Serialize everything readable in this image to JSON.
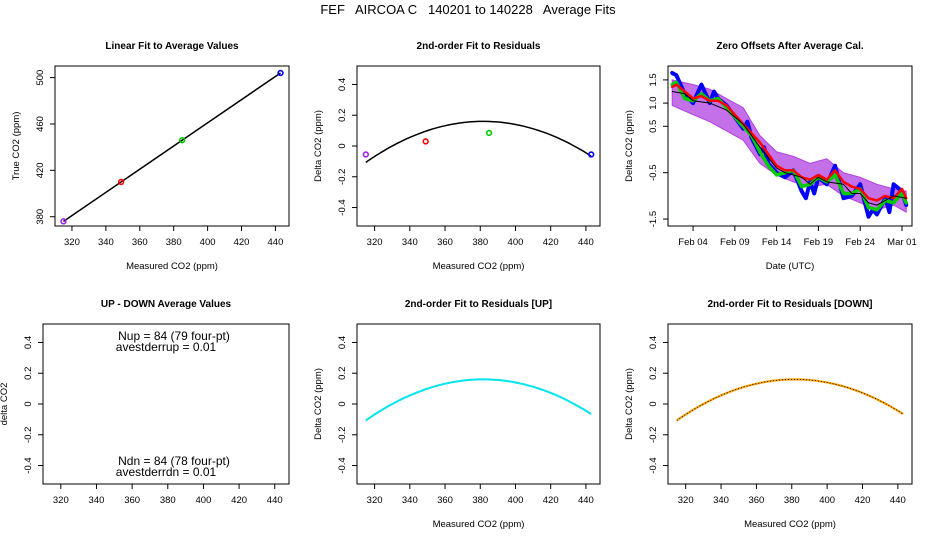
{
  "title": "FEF   AIRCOA C   140201 to 140228   Average Fits",
  "chart_data": [
    {
      "id": "p1",
      "type": "scatter",
      "title": "Linear Fit to Average Values",
      "xlabel": "Measured CO2 (ppm)",
      "ylabel": "True CO2 (ppm)",
      "xlim": [
        310,
        448
      ],
      "ylim": [
        372,
        510
      ],
      "xticks": [
        320,
        340,
        360,
        380,
        400,
        420,
        440
      ],
      "yticks": [
        380,
        420,
        460,
        500
      ],
      "fit_line": {
        "x": [
          315,
          443
        ],
        "y": [
          376,
          504
        ],
        "color": "#000000"
      },
      "points": [
        {
          "x": 315,
          "y": 376,
          "color": "#a020f0"
        },
        {
          "x": 349,
          "y": 410,
          "color": "#ff0000"
        },
        {
          "x": 385,
          "y": 446,
          "color": "#00cc00"
        },
        {
          "x": 443,
          "y": 504,
          "color": "#0000ff"
        }
      ]
    },
    {
      "id": "p2",
      "type": "scatter",
      "title": "2nd-order Fit to Residuals",
      "xlabel": "Measured CO2 (ppm)",
      "ylabel": "Delta CO2 (ppm)",
      "xlim": [
        310,
        448
      ],
      "ylim": [
        -0.52,
        0.52
      ],
      "xticks": [
        320,
        340,
        360,
        380,
        400,
        420,
        440
      ],
      "yticks": [
        -0.4,
        -0.2,
        0.0,
        0.2,
        0.4
      ],
      "curve": {
        "x_from": 315,
        "x_to": 443,
        "coef": [
          -8.58,
          0.0458,
          -6e-05
        ],
        "color": "#000000",
        "width": 1.5
      },
      "points": [
        {
          "x": 315,
          "y": -0.055,
          "color": "#a020f0"
        },
        {
          "x": 349,
          "y": 0.03,
          "color": "#ff0000"
        },
        {
          "x": 385,
          "y": 0.085,
          "color": "#00cc00"
        },
        {
          "x": 443,
          "y": -0.055,
          "color": "#0000ff"
        }
      ]
    },
    {
      "id": "p3",
      "type": "line",
      "title": "Zero Offsets After Average Cal.",
      "xlabel": "Date (UTC)",
      "ylabel": "Delta CO2 (ppm)",
      "xlim": [
        0,
        29.2
      ],
      "ylim": [
        -1.65,
        1.8
      ],
      "xticks": [
        3,
        8,
        13,
        18,
        23,
        28
      ],
      "xticklabels": [
        "Feb 04",
        "Feb 09",
        "Feb 14",
        "Feb 19",
        "Feb 24",
        "Mar 01"
      ],
      "yticks": [
        -1.5,
        -0.5,
        0.5,
        1.0,
        1.5
      ],
      "yticklabels": [
        "-1.5",
        "-0.5",
        "0.5",
        "1.0",
        "1.5"
      ],
      "band": {
        "color": "#b040e0",
        "x": [
          0.5,
          3,
          5,
          7,
          9,
          11,
          13,
          15,
          17,
          19,
          21,
          23,
          25,
          27,
          28.5
        ],
        "lo": [
          0.95,
          0.75,
          0.6,
          0.4,
          0.2,
          -0.3,
          -0.55,
          -0.7,
          -0.8,
          -0.75,
          -1.0,
          -1.15,
          -1.3,
          -1.2,
          -1.35
        ],
        "hi": [
          1.5,
          1.4,
          1.3,
          1.1,
          0.9,
          0.3,
          -0.05,
          -0.15,
          -0.3,
          -0.2,
          -0.5,
          -0.6,
          -0.75,
          -0.85,
          -0.9
        ]
      },
      "series": [
        {
          "color": "#0000ff",
          "width": 4,
          "x": [
            0.5,
            1,
            2,
            3,
            4,
            5,
            5.5,
            6,
            7,
            8,
            9,
            9.5,
            10,
            11,
            11.5,
            12,
            13,
            14,
            15,
            16,
            16.5,
            17,
            17.5,
            18,
            19,
            20,
            21,
            22,
            23,
            24,
            24.5,
            25,
            26,
            26.5,
            27,
            28,
            28.5
          ],
          "y": [
            1.65,
            1.6,
            1.2,
            1.0,
            1.4,
            1.0,
            1.25,
            1.1,
            0.95,
            0.7,
            0.45,
            0.6,
            0.25,
            -0.1,
            0.05,
            -0.3,
            -0.5,
            -0.6,
            -0.45,
            -0.9,
            -1.05,
            -0.7,
            -0.95,
            -0.6,
            -0.75,
            -0.35,
            -1.05,
            -1.0,
            -0.75,
            -1.45,
            -1.3,
            -1.4,
            -1.05,
            -1.35,
            -0.75,
            -0.9,
            -1.2
          ]
        },
        {
          "color": "#00cc00",
          "width": 3.5,
          "x": [
            0.5,
            1,
            2,
            3,
            4,
            5,
            6,
            7,
            8,
            9,
            10,
            11,
            12,
            13,
            14,
            15,
            16,
            17,
            18,
            19,
            20,
            21,
            22,
            23,
            24,
            25,
            26,
            27,
            28,
            28.5
          ],
          "y": [
            1.4,
            1.45,
            1.1,
            1.05,
            1.2,
            1.05,
            1.1,
            0.9,
            0.7,
            0.5,
            0.3,
            -0.05,
            -0.35,
            -0.55,
            -0.5,
            -0.45,
            -0.8,
            -0.75,
            -0.6,
            -0.7,
            -0.55,
            -0.95,
            -0.95,
            -0.85,
            -1.25,
            -1.3,
            -1.1,
            -1.15,
            -0.95,
            -1.15
          ]
        },
        {
          "color": "#ff0000",
          "width": 2.5,
          "x": [
            0.5,
            1,
            2,
            3,
            4,
            5,
            6,
            7,
            8,
            9,
            10,
            11,
            12,
            13,
            14,
            15,
            16,
            17,
            18,
            19,
            20,
            21,
            22,
            23,
            24,
            25,
            26,
            27,
            28,
            28.5
          ],
          "y": [
            1.35,
            1.4,
            1.25,
            1.1,
            1.15,
            1.05,
            1.05,
            0.95,
            0.75,
            0.55,
            0.35,
            0.15,
            -0.1,
            -0.35,
            -0.45,
            -0.45,
            -0.6,
            -0.65,
            -0.55,
            -0.65,
            -0.45,
            -0.7,
            -0.8,
            -0.85,
            -1.05,
            -1.1,
            -1.0,
            -1.05,
            -0.85,
            -1.05
          ]
        },
        {
          "color": "#000000",
          "width": 1,
          "x": [
            0.5,
            2,
            3,
            5,
            7,
            9,
            11,
            13,
            14,
            16,
            17,
            18,
            19,
            21,
            22,
            23,
            24,
            25,
            27,
            28.5
          ],
          "y": [
            1.25,
            1.2,
            1.05,
            1.0,
            0.85,
            0.55,
            0.05,
            -0.4,
            -0.5,
            -0.6,
            -0.75,
            -0.6,
            -0.7,
            -0.75,
            -0.95,
            -0.95,
            -1.15,
            -1.2,
            -1.0,
            -1.05
          ]
        }
      ]
    },
    {
      "id": "p4",
      "type": "scatter",
      "title": "UP - DOWN Average Values",
      "xlabel": "",
      "ylabel": "delta CO2",
      "xlim": [
        310,
        448
      ],
      "ylim": [
        -0.52,
        0.52
      ],
      "xticks": [
        320,
        340,
        360,
        380,
        400,
        420,
        440
      ],
      "yticks": [
        -0.4,
        -0.2,
        0.0,
        0.2,
        0.4
      ],
      "annotations": [
        {
          "line1": "Nup = 84 (79 four-pt)",
          "line2": "avestderrup =  0.01",
          "pos": "top"
        },
        {
          "line1": "Ndn = 84 (78 four-pt)",
          "line2": "avestderrdn =  0.01",
          "pos": "bottom"
        }
      ]
    },
    {
      "id": "p5",
      "type": "line",
      "title": "2nd-order Fit to Residuals [UP]",
      "xlabel": "Measured CO2 (ppm)",
      "ylabel": "Delta CO2 (ppm)",
      "xlim": [
        310,
        448
      ],
      "ylim": [
        -0.52,
        0.52
      ],
      "xticks": [
        320,
        340,
        360,
        380,
        400,
        420,
        440
      ],
      "yticks": [
        -0.4,
        -0.2,
        0.0,
        0.2,
        0.4
      ],
      "curve": {
        "x_from": 315,
        "x_to": 443,
        "coef": [
          -8.58,
          0.0458,
          -6e-05
        ],
        "color": "#00e5ee",
        "width": 2
      }
    },
    {
      "id": "p6",
      "type": "line",
      "title": "2nd-order Fit to Residuals [DOWN]",
      "xlabel": "Measured CO2 (ppm)",
      "ylabel": "Delta CO2 (ppm)",
      "xlim": [
        310,
        448
      ],
      "ylim": [
        -0.52,
        0.52
      ],
      "xticks": [
        320,
        340,
        360,
        380,
        400,
        420,
        440
      ],
      "yticks": [
        -0.4,
        -0.2,
        0.0,
        0.2,
        0.4
      ],
      "curve": {
        "x_from": 315,
        "x_to": 443,
        "coef": [
          -8.58,
          0.0458,
          -6e-05
        ],
        "color": "#ffa500",
        "width": 2.2,
        "overlay": "#000000"
      }
    }
  ]
}
